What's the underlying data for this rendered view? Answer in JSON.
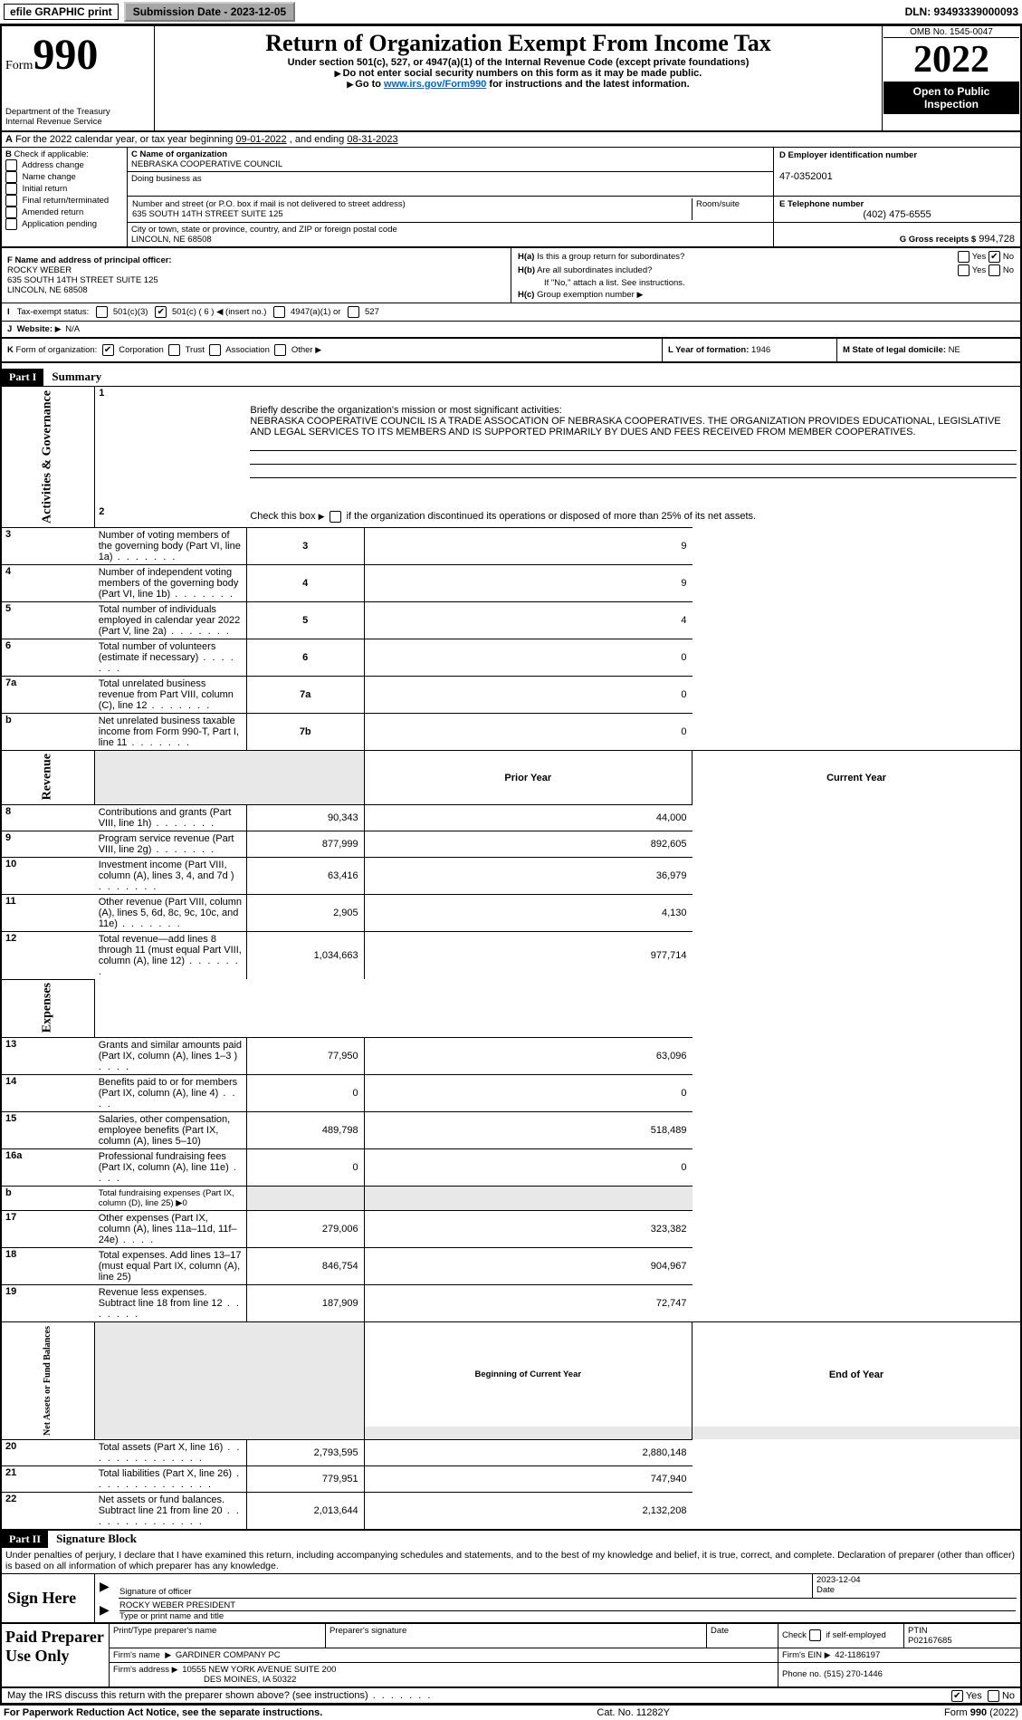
{
  "topbar": {
    "efile": "efile GRAPHIC print",
    "submission": "Submission Date - 2023-12-05",
    "dln": "DLN: 93493339000093"
  },
  "header": {
    "form_prefix": "Form",
    "form_number": "990",
    "title": "Return of Organization Exempt From Income Tax",
    "subtitle": "Under section 501(c), 527, or 4947(a)(1) of the Internal Revenue Code (except private foundations)",
    "note1": "Do not enter social security numbers on this form as it may be made public.",
    "note2_pre": "Go to ",
    "note2_link": "www.irs.gov/Form990",
    "note2_post": " for instructions and the latest information.",
    "dept": "Department of the Treasury",
    "irs": "Internal Revenue Service",
    "omb": "OMB No. 1545-0047",
    "year": "2022",
    "open1": "Open to Public",
    "open2": "Inspection"
  },
  "A": {
    "label_pre": "For the 2022 calendar year, or tax year beginning ",
    "begin": "09-01-2022",
    "mid": " , and ending ",
    "end": "08-31-2023"
  },
  "B": {
    "label": "Check if applicable:",
    "opts": [
      "Address change",
      "Name change",
      "Initial return",
      "Final return/terminated",
      "Amended return",
      "Application pending"
    ]
  },
  "C": {
    "name_lbl": "C Name of organization",
    "name": "NEBRASKA COOPERATIVE COUNCIL",
    "dba_lbl": "Doing business as",
    "dba": "",
    "addr_lbl": "Number and street (or P.O. box if mail is not delivered to street address)",
    "room_lbl": "Room/suite",
    "addr": "635 SOUTH 14TH STREET SUITE 125",
    "city_lbl": "City or town, state or province, country, and ZIP or foreign postal code",
    "city": "LINCOLN, NE  68508"
  },
  "D": {
    "lbl": "D Employer identification number",
    "val": "47-0352001"
  },
  "E": {
    "lbl": "E Telephone number",
    "val": "(402) 475-6555"
  },
  "G": {
    "lbl": "G Gross receipts $",
    "val": "994,728"
  },
  "F": {
    "lbl": "F  Name and address of principal officer:",
    "name": "ROCKY WEBER",
    "addr": "635 SOUTH 14TH STREET SUITE 125",
    "city": "LINCOLN, NE  68508"
  },
  "H": {
    "a": "Is this a group return for subordinates?",
    "b": "Are all subordinates included?",
    "note": "If \"No,\" attach a list. See instructions.",
    "c": "Group exemption number"
  },
  "I": {
    "lbl": "Tax-exempt status:",
    "o1": "501(c)(3)",
    "o2_pre": "501(c) ( ",
    "o2_num": "6",
    "o2_post": " ) ◀ (insert no.)",
    "o3": "4947(a)(1) or",
    "o4": "527"
  },
  "J": {
    "lbl": "Website:",
    "val": "N/A"
  },
  "K": {
    "lbl": "Form of organization:",
    "o1": "Corporation",
    "o2": "Trust",
    "o3": "Association",
    "o4": "Other"
  },
  "L": {
    "lbl": "L Year of formation:",
    "val": "1946"
  },
  "M": {
    "lbl": "M State of legal domicile:",
    "val": "NE"
  },
  "part1": {
    "hdr": "Part I",
    "title": "Summary",
    "l1": "Briefly describe the organization's mission or most significant activities:",
    "mission": "NEBRASKA COOPERATIVE COUNCIL IS A TRADE ASSOCATION OF NEBRASKA COOPERATIVES. THE ORGANIZATION PROVIDES EDUCATIONAL, LEGISLATIVE AND LEGAL SERVICES TO ITS MEMBERS AND IS SUPPORTED PRIMARILY BY DUES AND FEES RECEIVED FROM MEMBER COOPERATIVES.",
    "l2": "Check this box ▶        if the organization discontinued its operations or disposed of more than 25% of its net assets.",
    "lines": [
      {
        "n": "3",
        "t": "Number of voting members of the governing body (Part VI, line 1a)",
        "box": "3",
        "v": "9"
      },
      {
        "n": "4",
        "t": "Number of independent voting members of the governing body (Part VI, line 1b)",
        "box": "4",
        "v": "9"
      },
      {
        "n": "5",
        "t": "Total number of individuals employed in calendar year 2022 (Part V, line 2a)",
        "box": "5",
        "v": "4"
      },
      {
        "n": "6",
        "t": "Total number of volunteers (estimate if necessary)",
        "box": "6",
        "v": "0"
      },
      {
        "n": "7a",
        "t": "Total unrelated business revenue from Part VIII, column (C), line 12",
        "box": "7a",
        "v": "0"
      },
      {
        "n": "",
        "t": "Net unrelated business taxable income from Form 990-T, Part I, line 11",
        "box": "7b",
        "v": "0"
      }
    ],
    "col_prior": "Prior Year",
    "col_curr": "Current Year",
    "rev": [
      {
        "n": "8",
        "t": "Contributions and grants (Part VIII, line 1h)",
        "p": "90,343",
        "c": "44,000"
      },
      {
        "n": "9",
        "t": "Program service revenue (Part VIII, line 2g)",
        "p": "877,999",
        "c": "892,605"
      },
      {
        "n": "10",
        "t": "Investment income (Part VIII, column (A), lines 3, 4, and 7d )",
        "p": "63,416",
        "c": "36,979"
      },
      {
        "n": "11",
        "t": "Other revenue (Part VIII, column (A), lines 5, 6d, 8c, 9c, 10c, and 11e)",
        "p": "2,905",
        "c": "4,130"
      },
      {
        "n": "12",
        "t": "Total revenue—add lines 8 through 11 (must equal Part VIII, column (A), line 12)",
        "p": "1,034,663",
        "c": "977,714"
      }
    ],
    "exp": [
      {
        "n": "13",
        "t": "Grants and similar amounts paid (Part IX, column (A), lines 1–3 )",
        "p": "77,950",
        "c": "63,096",
        "d": "xs"
      },
      {
        "n": "14",
        "t": "Benefits paid to or for members (Part IX, column (A), line 4)",
        "p": "0",
        "c": "0",
        "d": "xs"
      },
      {
        "n": "15",
        "t": "Salaries, other compensation, employee benefits (Part IX, column (A), lines 5–10)",
        "p": "489,798",
        "c": "518,489",
        "d": ""
      },
      {
        "n": "16a",
        "t": "Professional fundraising fees (Part IX, column (A), line 11e)",
        "p": "0",
        "c": "0",
        "d": "xs"
      },
      {
        "n": "b",
        "t": "Total fundraising expenses (Part IX, column (D), line 25) ▶0",
        "p": "",
        "c": "",
        "shade": true,
        "d": ""
      },
      {
        "n": "17",
        "t": "Other expenses (Part IX, column (A), lines 11a–11d, 11f–24e)",
        "p": "279,006",
        "c": "323,382",
        "d": "xs"
      },
      {
        "n": "18",
        "t": "Total expenses. Add lines 13–17 (must equal Part IX, column (A), line 25)",
        "p": "846,754",
        "c": "904,967",
        "d": ""
      },
      {
        "n": "19",
        "t": "Revenue less expenses. Subtract line 18 from line 12",
        "p": "187,909",
        "c": "72,747",
        "d": "s"
      }
    ],
    "col_beg": "Beginning of Current Year",
    "col_end": "End of Year",
    "net": [
      {
        "n": "20",
        "t": "Total assets (Part X, line 16)",
        "p": "2,793,595",
        "c": "2,880,148"
      },
      {
        "n": "21",
        "t": "Total liabilities (Part X, line 26)",
        "p": "779,951",
        "c": "747,940"
      },
      {
        "n": "22",
        "t": "Net assets or fund balances. Subtract line 21 from line 20",
        "p": "2,013,644",
        "c": "2,132,208"
      }
    ],
    "side_gov": "Activities & Governance",
    "side_rev": "Revenue",
    "side_exp": "Expenses",
    "side_net": "Net Assets or Fund Balances"
  },
  "part2": {
    "hdr": "Part II",
    "title": "Signature Block",
    "penalty": "Under penalties of perjury, I declare that I have examined this return, including accompanying schedules and statements, and to the best of my knowledge and belief, it is true, correct, and complete. Declaration of preparer (other than officer) is based on all information of which preparer has any knowledge.",
    "sign_here": "Sign Here",
    "sig_officer": "Signature of officer",
    "sig_date_lbl": "Date",
    "sig_date": "2023-12-04",
    "sig_name": "ROCKY WEBER  PRESIDENT",
    "sig_name_lbl": "Type or print name and title",
    "paid": "Paid Preparer Use Only",
    "prep_name_lbl": "Print/Type preparer's name",
    "prep_sig_lbl": "Preparer's signature",
    "prep_date_lbl": "Date",
    "prep_check": "Check         if self-employed",
    "ptin_lbl": "PTIN",
    "ptin": "P02167685",
    "firm_name_lbl": "Firm's name",
    "firm_name": "GARDINER COMPANY PC",
    "firm_ein_lbl": "Firm's EIN",
    "firm_ein": "42-1186197",
    "firm_addr_lbl": "Firm's address",
    "firm_addr1": "10555 NEW YORK AVENUE SUITE 200",
    "firm_addr2": "DES MOINES, IA  50322",
    "firm_phone_lbl": "Phone no.",
    "firm_phone": "(515) 270-1446",
    "discuss": "May the IRS discuss this return with the preparer shown above? (see instructions)",
    "yes": "Yes",
    "no": "No"
  },
  "footer": {
    "pra": "For Paperwork Reduction Act Notice, see the separate instructions.",
    "cat": "Cat. No. 11282Y",
    "form": "Form 990 (2022)"
  }
}
